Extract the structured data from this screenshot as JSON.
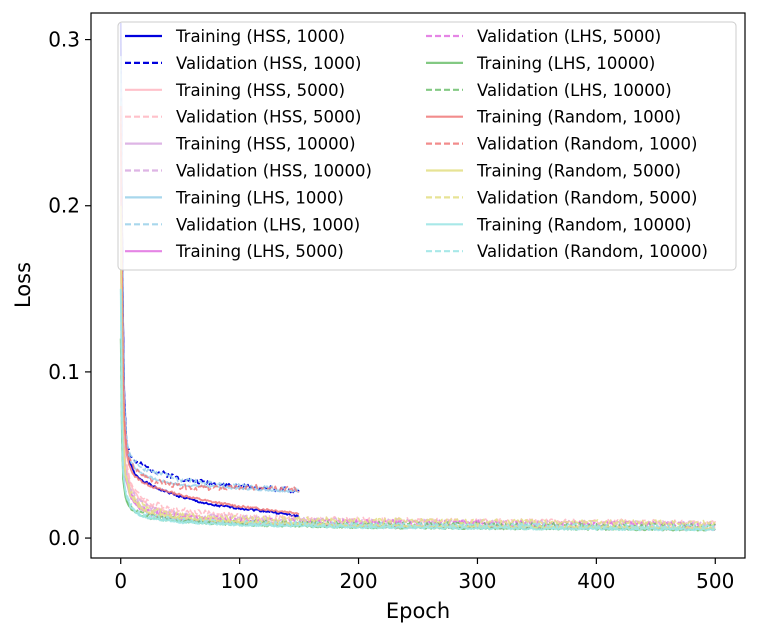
{
  "chart_data": {
    "type": "line",
    "title": "",
    "xlabel": "Epoch",
    "ylabel": "Loss",
    "xlim": [
      -25,
      525
    ],
    "ylim": [
      -0.012,
      0.316
    ],
    "xticks": [
      0,
      100,
      200,
      300,
      400,
      500
    ],
    "yticks": [
      0.0,
      0.1,
      0.2,
      0.3
    ],
    "xtick_labels": [
      "0",
      "100",
      "200",
      "300",
      "400",
      "500"
    ],
    "ytick_labels": [
      "0.0",
      "0.1",
      "0.2",
      "0.3"
    ],
    "grid": false,
    "legend_position": "top-right",
    "legend_columns": 2,
    "series": [
      {
        "name": "Training (HSS, 1000)",
        "color": "#0000dd",
        "dashed": false,
        "alpha": 1.0,
        "epochs": 150,
        "x": [
          0,
          1,
          2,
          3,
          5,
          8,
          12,
          20,
          30,
          50,
          75,
          100,
          125,
          150
        ],
        "values": [
          0.31,
          0.2,
          0.13,
          0.085,
          0.055,
          0.045,
          0.038,
          0.034,
          0.03,
          0.025,
          0.02,
          0.018,
          0.016,
          0.013
        ]
      },
      {
        "name": "Validation (HSS, 1000)",
        "color": "#0000dd",
        "dashed": true,
        "alpha": 1.0,
        "epochs": 150,
        "x": [
          0,
          1,
          2,
          3,
          5,
          8,
          12,
          20,
          30,
          50,
          75,
          100,
          125,
          150
        ],
        "values": [
          0.3,
          0.2,
          0.13,
          0.088,
          0.058,
          0.05,
          0.046,
          0.043,
          0.04,
          0.036,
          0.033,
          0.031,
          0.03,
          0.028
        ]
      },
      {
        "name": "Training (HSS, 5000)",
        "color": "#ffb6c1",
        "dashed": false,
        "alpha": 0.85,
        "epochs": 500,
        "x": [
          0,
          1,
          2,
          4,
          8,
          15,
          25,
          50,
          100,
          200,
          300,
          400,
          500
        ],
        "values": [
          0.25,
          0.12,
          0.07,
          0.045,
          0.032,
          0.024,
          0.019,
          0.014,
          0.01,
          0.008,
          0.007,
          0.0065,
          0.006
        ]
      },
      {
        "name": "Validation (HSS, 5000)",
        "color": "#ffb6c1",
        "dashed": true,
        "alpha": 0.85,
        "epochs": 500,
        "x": [
          0,
          1,
          2,
          4,
          8,
          15,
          25,
          50,
          100,
          200,
          300,
          400,
          500
        ],
        "values": [
          0.25,
          0.12,
          0.072,
          0.048,
          0.034,
          0.026,
          0.021,
          0.017,
          0.013,
          0.011,
          0.01,
          0.01,
          0.009
        ]
      },
      {
        "name": "Training (HSS, 10000)",
        "color": "#d8a8e0",
        "dashed": false,
        "alpha": 0.85,
        "epochs": 500,
        "x": [
          0,
          1,
          2,
          4,
          8,
          15,
          25,
          50,
          100,
          200,
          300,
          400,
          500
        ],
        "values": [
          0.22,
          0.1,
          0.06,
          0.04,
          0.028,
          0.02,
          0.016,
          0.012,
          0.009,
          0.007,
          0.0065,
          0.006,
          0.0055
        ]
      },
      {
        "name": "Validation (HSS, 10000)",
        "color": "#d8a8e0",
        "dashed": true,
        "alpha": 0.85,
        "epochs": 500,
        "x": [
          0,
          1,
          2,
          4,
          8,
          15,
          25,
          50,
          100,
          200,
          300,
          400,
          500
        ],
        "values": [
          0.22,
          0.1,
          0.062,
          0.042,
          0.03,
          0.022,
          0.018,
          0.014,
          0.012,
          0.01,
          0.0095,
          0.009,
          0.0085
        ]
      },
      {
        "name": "Training (LHS, 1000)",
        "color": "#9fd3ea",
        "dashed": false,
        "alpha": 0.9,
        "epochs": 150,
        "x": [
          0,
          1,
          2,
          3,
          5,
          8,
          12,
          20,
          30,
          50,
          75,
          100,
          125,
          150
        ],
        "values": [
          0.29,
          0.19,
          0.12,
          0.08,
          0.055,
          0.047,
          0.042,
          0.038,
          0.035,
          0.032,
          0.031,
          0.03,
          0.029,
          0.028
        ]
      },
      {
        "name": "Validation (LHS, 1000)",
        "color": "#9fd3ea",
        "dashed": true,
        "alpha": 0.9,
        "epochs": 150,
        "x": [
          0,
          1,
          2,
          3,
          5,
          8,
          12,
          20,
          30,
          50,
          75,
          100,
          125,
          150
        ],
        "values": [
          0.29,
          0.19,
          0.12,
          0.082,
          0.058,
          0.05,
          0.046,
          0.042,
          0.039,
          0.035,
          0.033,
          0.031,
          0.03,
          0.029
        ]
      },
      {
        "name": "Training (LHS, 5000)",
        "color": "#e070e0",
        "dashed": false,
        "alpha": 0.85,
        "epochs": 500,
        "x": [
          0,
          1,
          2,
          4,
          8,
          15,
          25,
          50,
          100,
          200,
          300,
          400,
          500
        ],
        "values": [
          0.2,
          0.09,
          0.055,
          0.036,
          0.025,
          0.018,
          0.014,
          0.011,
          0.009,
          0.007,
          0.0065,
          0.006,
          0.0055
        ]
      },
      {
        "name": "Validation (LHS, 5000)",
        "color": "#e070e0",
        "dashed": true,
        "alpha": 0.85,
        "epochs": 500,
        "x": [
          0,
          1,
          2,
          4,
          8,
          15,
          25,
          50,
          100,
          200,
          300,
          400,
          500
        ],
        "values": [
          0.2,
          0.09,
          0.057,
          0.038,
          0.027,
          0.02,
          0.016,
          0.013,
          0.011,
          0.0095,
          0.009,
          0.0085,
          0.008
        ]
      },
      {
        "name": "Training (LHS, 10000)",
        "color": "#6dbf6d",
        "dashed": false,
        "alpha": 0.85,
        "epochs": 500,
        "x": [
          0,
          1,
          2,
          4,
          8,
          15,
          25,
          50,
          100,
          200,
          300,
          400,
          500
        ],
        "values": [
          0.12,
          0.06,
          0.035,
          0.024,
          0.018,
          0.014,
          0.012,
          0.01,
          0.008,
          0.0065,
          0.006,
          0.0055,
          0.005
        ]
      },
      {
        "name": "Validation (LHS, 10000)",
        "color": "#6dbf6d",
        "dashed": true,
        "alpha": 0.85,
        "epochs": 500,
        "x": [
          0,
          1,
          2,
          4,
          8,
          15,
          25,
          50,
          100,
          200,
          300,
          400,
          500
        ],
        "values": [
          0.12,
          0.06,
          0.036,
          0.025,
          0.019,
          0.015,
          0.013,
          0.011,
          0.0095,
          0.0085,
          0.008,
          0.0075,
          0.007
        ]
      },
      {
        "name": "Training (Random, 1000)",
        "color": "#f07878",
        "dashed": false,
        "alpha": 0.85,
        "epochs": 150,
        "x": [
          0,
          1,
          2,
          3,
          5,
          8,
          12,
          20,
          30,
          50,
          75,
          100,
          125,
          150
        ],
        "values": [
          0.26,
          0.16,
          0.1,
          0.07,
          0.05,
          0.042,
          0.037,
          0.033,
          0.03,
          0.026,
          0.022,
          0.019,
          0.017,
          0.015
        ]
      },
      {
        "name": "Validation (Random, 1000)",
        "color": "#f07878",
        "dashed": true,
        "alpha": 0.85,
        "epochs": 150,
        "x": [
          0,
          1,
          2,
          3,
          5,
          8,
          12,
          20,
          30,
          50,
          75,
          100,
          125,
          150
        ],
        "values": [
          0.26,
          0.16,
          0.1,
          0.072,
          0.054,
          0.046,
          0.041,
          0.037,
          0.034,
          0.031,
          0.03,
          0.03,
          0.031,
          0.029
        ]
      },
      {
        "name": "Training (Random, 5000)",
        "color": "#e4e08a",
        "dashed": false,
        "alpha": 0.9,
        "epochs": 500,
        "x": [
          0,
          1,
          2,
          4,
          8,
          15,
          25,
          50,
          100,
          200,
          300,
          400,
          500
        ],
        "values": [
          0.2,
          0.095,
          0.058,
          0.038,
          0.026,
          0.019,
          0.015,
          0.012,
          0.0095,
          0.0075,
          0.007,
          0.0065,
          0.006
        ]
      },
      {
        "name": "Validation (Random, 5000)",
        "color": "#e4e08a",
        "dashed": true,
        "alpha": 0.9,
        "epochs": 500,
        "x": [
          0,
          1,
          2,
          4,
          8,
          15,
          25,
          50,
          100,
          200,
          300,
          400,
          500
        ],
        "values": [
          0.2,
          0.095,
          0.06,
          0.04,
          0.028,
          0.021,
          0.017,
          0.014,
          0.012,
          0.0105,
          0.01,
          0.0095,
          0.009
        ]
      },
      {
        "name": "Training (Random, 10000)",
        "color": "#9ee6e6",
        "dashed": false,
        "alpha": 0.9,
        "epochs": 500,
        "x": [
          0,
          1,
          2,
          4,
          8,
          15,
          25,
          50,
          100,
          200,
          300,
          400,
          500
        ],
        "values": [
          0.15,
          0.07,
          0.04,
          0.027,
          0.019,
          0.014,
          0.012,
          0.0095,
          0.008,
          0.0065,
          0.006,
          0.0055,
          0.005
        ]
      },
      {
        "name": "Validation (Random, 10000)",
        "color": "#9ee6e6",
        "dashed": true,
        "alpha": 0.9,
        "epochs": 500,
        "x": [
          0,
          1,
          2,
          4,
          8,
          15,
          25,
          50,
          100,
          200,
          300,
          400,
          500
        ],
        "values": [
          0.15,
          0.07,
          0.041,
          0.028,
          0.02,
          0.015,
          0.013,
          0.0105,
          0.009,
          0.008,
          0.0075,
          0.007,
          0.0065
        ]
      }
    ]
  }
}
